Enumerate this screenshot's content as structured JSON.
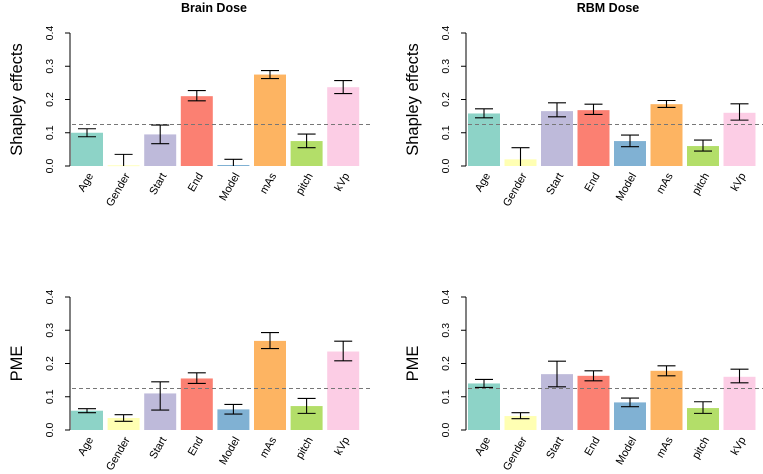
{
  "chart_data": [
    {
      "type": "bar",
      "title": "Brain Dose",
      "ylabel": "Shapley effects",
      "xlabel": "",
      "categories": [
        "Age",
        "Gender",
        "Start",
        "End",
        "Model",
        "mAs",
        "pitch",
        "kVp"
      ],
      "values": [
        0.1,
        0.002,
        0.095,
        0.21,
        0.003,
        0.275,
        0.075,
        0.237
      ],
      "err_low": [
        0.088,
        0.0,
        0.067,
        0.196,
        0.0,
        0.263,
        0.055,
        0.218
      ],
      "err_high": [
        0.112,
        0.035,
        0.123,
        0.227,
        0.02,
        0.287,
        0.096,
        0.257
      ],
      "reference_line": 0.125,
      "ylim": [
        0,
        0.4
      ],
      "yticks": [
        "0.0",
        "0.1",
        "0.2",
        "0.3",
        "0.4"
      ],
      "colors": [
        "#8DD3C7",
        "#FFFFB3",
        "#BEBADA",
        "#FB8072",
        "#80B1D3",
        "#FDB462",
        "#B3DE69",
        "#FCCDE5"
      ]
    },
    {
      "type": "bar",
      "title": "RBM Dose",
      "ylabel": "Shapley effects",
      "xlabel": "",
      "categories": [
        "Age",
        "Gender",
        "Start",
        "End",
        "Model",
        "mAs",
        "pitch",
        "kVp"
      ],
      "values": [
        0.158,
        0.02,
        0.165,
        0.168,
        0.075,
        0.186,
        0.06,
        0.16
      ],
      "err_low": [
        0.145,
        0.0,
        0.148,
        0.155,
        0.058,
        0.176,
        0.045,
        0.138
      ],
      "err_high": [
        0.172,
        0.055,
        0.19,
        0.186,
        0.093,
        0.197,
        0.078,
        0.187
      ],
      "reference_line": 0.125,
      "ylim": [
        0,
        0.4
      ],
      "yticks": [
        "0.0",
        "0.1",
        "0.2",
        "0.3",
        "0.4"
      ],
      "colors": [
        "#8DD3C7",
        "#FFFFB3",
        "#BEBADA",
        "#FB8072",
        "#80B1D3",
        "#FDB462",
        "#B3DE69",
        "#FCCDE5"
      ]
    },
    {
      "type": "bar",
      "title": "",
      "ylabel": "PME",
      "xlabel": "",
      "categories": [
        "Age",
        "Gender",
        "Start",
        "End",
        "Model",
        "mAs",
        "pitch",
        "kVp"
      ],
      "values": [
        0.058,
        0.036,
        0.11,
        0.155,
        0.062,
        0.268,
        0.072,
        0.236
      ],
      "err_low": [
        0.052,
        0.026,
        0.06,
        0.14,
        0.048,
        0.245,
        0.05,
        0.208
      ],
      "err_high": [
        0.064,
        0.046,
        0.145,
        0.172,
        0.077,
        0.293,
        0.095,
        0.267
      ],
      "reference_line": 0.125,
      "ylim": [
        0,
        0.4
      ],
      "yticks": [
        "0.0",
        "0.1",
        "0.2",
        "0.3",
        "0.4"
      ],
      "colors": [
        "#8DD3C7",
        "#FFFFB3",
        "#BEBADA",
        "#FB8072",
        "#80B1D3",
        "#FDB462",
        "#B3DE69",
        "#FCCDE5"
      ]
    },
    {
      "type": "bar",
      "title": "",
      "ylabel": "PME",
      "xlabel": "",
      "categories": [
        "Age",
        "Gender",
        "Start",
        "End",
        "Model",
        "mAs",
        "pitch",
        "kVp"
      ],
      "values": [
        0.14,
        0.042,
        0.168,
        0.163,
        0.083,
        0.178,
        0.066,
        0.16
      ],
      "err_low": [
        0.128,
        0.034,
        0.13,
        0.148,
        0.07,
        0.163,
        0.05,
        0.142
      ],
      "err_high": [
        0.152,
        0.052,
        0.207,
        0.178,
        0.096,
        0.193,
        0.085,
        0.183
      ],
      "reference_line": 0.125,
      "ylim": [
        0,
        0.4
      ],
      "yticks": [
        "0.0",
        "0.1",
        "0.2",
        "0.3",
        "0.4"
      ],
      "colors": [
        "#8DD3C7",
        "#FFFFB3",
        "#BEBADA",
        "#FB8072",
        "#80B1D3",
        "#FDB462",
        "#B3DE69",
        "#FCCDE5"
      ]
    }
  ]
}
